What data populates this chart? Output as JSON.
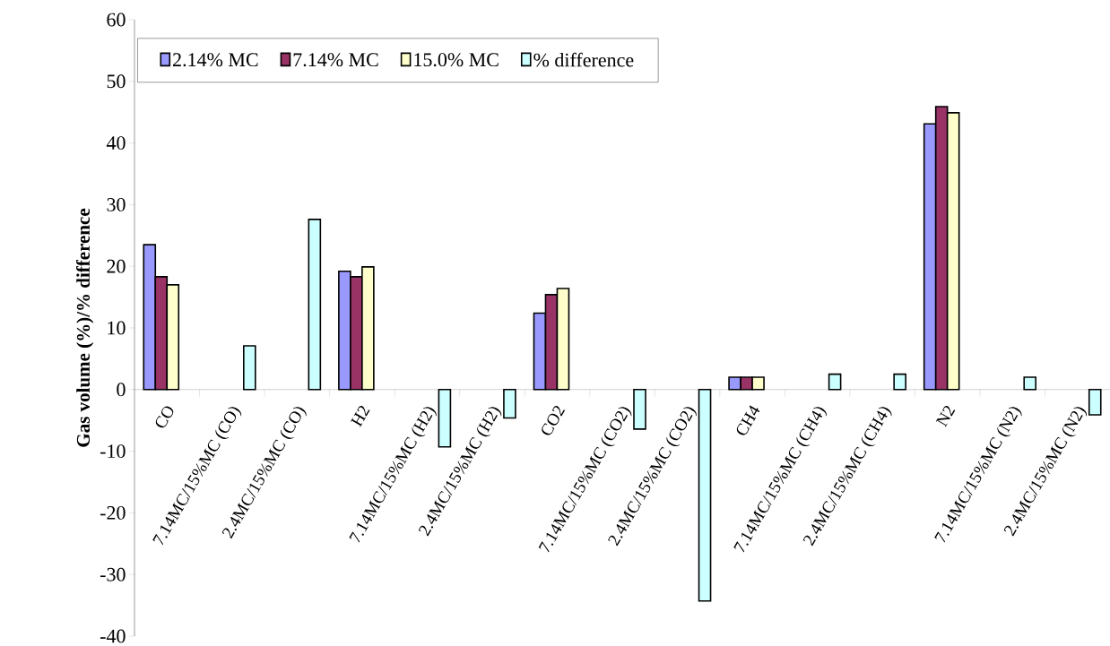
{
  "chart_data": {
    "type": "bar",
    "ylabel": "Gas volume (%)/% difference",
    "categories": [
      "CO",
      "7.14MC/15%MC (CO)",
      "2.4MC/15%MC (CO)",
      "H2",
      "7.14MC/15%MC (H2)",
      "2.4MC/15%MC (H2)",
      "CO2",
      "7.14MC/15%MC (CO2)",
      "2.4MC/15%MC (CO2)",
      "CH4",
      "7.14MC/15%MC (CH4)",
      "2.4MC/15%MC (CH4)",
      "N2",
      "7.14MC/15%MC (N2)",
      "2.4MC/15%MC (N2)"
    ],
    "series": [
      {
        "name": "2.14% MC",
        "color": "#9999ff",
        "values": [
          23.5,
          null,
          null,
          19.2,
          null,
          null,
          12.4,
          null,
          null,
          2.0,
          null,
          null,
          43.1,
          null,
          null
        ]
      },
      {
        "name": "7.14% MC",
        "color": "#993366",
        "values": [
          18.3,
          null,
          null,
          18.3,
          null,
          null,
          15.4,
          null,
          null,
          2.0,
          null,
          null,
          45.9,
          null,
          null
        ]
      },
      {
        "name": "15.0% MC",
        "color": "#ffffcc",
        "values": [
          17.0,
          null,
          null,
          19.9,
          null,
          null,
          16.4,
          null,
          null,
          2.0,
          null,
          null,
          44.9,
          null,
          null
        ]
      },
      {
        "name": "% difference",
        "color": "#ccffff",
        "values": [
          null,
          7.1,
          27.6,
          null,
          -9.3,
          -4.6,
          null,
          -6.4,
          -34.3,
          null,
          2.5,
          2.5,
          null,
          2.0,
          -4.1
        ]
      }
    ],
    "ylim": [
      -40,
      60
    ],
    "yticks": [
      -40,
      -30,
      -20,
      -10,
      0,
      10,
      20,
      30,
      40,
      50,
      60
    ],
    "legend": "top left"
  }
}
